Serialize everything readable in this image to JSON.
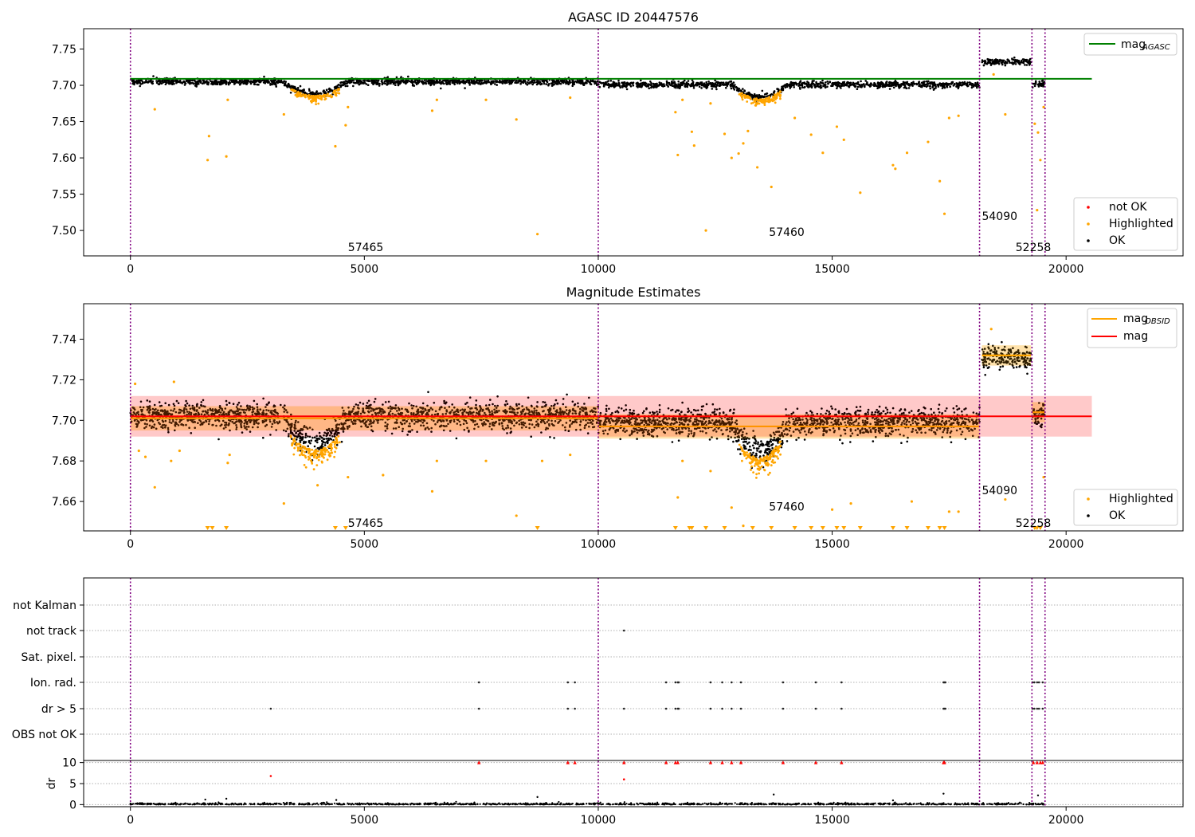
{
  "chart_data": [
    {
      "type": "scatter",
      "title": "AGASC ID 20447576",
      "xlim": [
        -1000,
        22500
      ],
      "ylim": [
        7.465,
        7.778
      ],
      "xticks": [
        0,
        5000,
        10000,
        15000,
        20000
      ],
      "yticks": [
        7.5,
        7.55,
        7.6,
        7.65,
        7.7,
        7.75
      ],
      "obs_boundaries": [
        0,
        10000,
        18150,
        19270,
        19550
      ],
      "obsid_labels": [
        {
          "text": "57465",
          "x": 4650,
          "y": 7.477
        },
        {
          "text": "57460",
          "x": 13650,
          "y": 7.498
        },
        {
          "text": "54090",
          "x": 18200,
          "y": 7.52
        },
        {
          "text": "52258",
          "x": 18920,
          "y": 7.477
        }
      ],
      "reference_line": {
        "name": "mag_AGASC",
        "legend_label": "mag",
        "legend_sub": "AGASC",
        "y": 7.709,
        "x": [
          0,
          20550
        ],
        "color": "#008000"
      },
      "series": [
        {
          "name": "OK",
          "color": "#000000",
          "segments": [
            {
              "x0": 0,
              "x1": 10000,
              "base": 7.705,
              "spread": 0.004,
              "dip_center": 3950,
              "dip_width": 700,
              "dip_depth": 0.017
            },
            {
              "x0": 10000,
              "x1": 18150,
              "base": 7.701,
              "spread": 0.004,
              "dip_center": 13450,
              "dip_width": 600,
              "dip_depth": 0.017
            },
            {
              "x0": 18200,
              "x1": 19250,
              "base": 7.732,
              "spread": 0.004
            },
            {
              "x0": 19270,
              "x1": 19550,
              "base": 7.703,
              "spread": 0.004
            }
          ]
        },
        {
          "name": "Highlighted",
          "color": "#ffa500",
          "points": [
            [
              520,
              7.667
            ],
            [
              1650,
              7.597
            ],
            [
              1680,
              7.63
            ],
            [
              2050,
              7.602
            ],
            [
              2080,
              7.68
            ],
            [
              3280,
              7.66
            ],
            [
              4380,
              7.616
            ],
            [
              4600,
              7.645
            ],
            [
              4650,
              7.67
            ],
            [
              6450,
              7.665
            ],
            [
              6550,
              7.68
            ],
            [
              7600,
              7.68
            ],
            [
              8250,
              7.653
            ],
            [
              8700,
              7.495
            ],
            [
              9400,
              7.683
            ],
            [
              11650,
              7.663
            ],
            [
              11700,
              7.604
            ],
            [
              11800,
              7.68
            ],
            [
              12000,
              7.636
            ],
            [
              12050,
              7.617
            ],
            [
              12300,
              7.5
            ],
            [
              12400,
              7.675
            ],
            [
              12700,
              7.633
            ],
            [
              12850,
              7.6
            ],
            [
              13000,
              7.606
            ],
            [
              13100,
              7.62
            ],
            [
              13200,
              7.637
            ],
            [
              13400,
              7.587
            ],
            [
              13700,
              7.56
            ],
            [
              14200,
              7.655
            ],
            [
              14550,
              7.632
            ],
            [
              14800,
              7.607
            ],
            [
              15100,
              7.643
            ],
            [
              15250,
              7.625
            ],
            [
              15600,
              7.552
            ],
            [
              16300,
              7.59
            ],
            [
              16350,
              7.585
            ],
            [
              16600,
              7.607
            ],
            [
              17050,
              7.622
            ],
            [
              17300,
              7.568
            ],
            [
              17400,
              7.523
            ],
            [
              17500,
              7.655
            ],
            [
              17700,
              7.658
            ],
            [
              18450,
              7.715
            ],
            [
              18700,
              7.66
            ],
            [
              19330,
              7.647
            ],
            [
              19380,
              7.528
            ],
            [
              19400,
              7.635
            ],
            [
              19450,
              7.597
            ],
            [
              19520,
              7.67
            ]
          ]
        },
        {
          "name": "not OK",
          "color": "#ff0000",
          "points": []
        }
      ],
      "legend": {
        "position": "lower-right",
        "entries": [
          "not OK",
          "Highlighted",
          "OK"
        ]
      }
    },
    {
      "type": "scatter",
      "title": "Magnitude Estimates",
      "xlim": [
        -1000,
        22500
      ],
      "ylim": [
        7.6455,
        7.7575
      ],
      "xticks": [
        0,
        5000,
        10000,
        15000,
        20000
      ],
      "yticks": [
        7.66,
        7.68,
        7.7,
        7.72,
        7.74
      ],
      "obs_boundaries": [
        0,
        10000,
        18150,
        19270,
        19550
      ],
      "obsid_labels": [
        {
          "text": "57465",
          "x": 4650,
          "y": 7.6495
        },
        {
          "text": "57460",
          "x": 13650,
          "y": 7.6575
        },
        {
          "text": "54090",
          "x": 18200,
          "y": 7.6655
        },
        {
          "text": "52258",
          "x": 18920,
          "y": 7.6495
        }
      ],
      "mag": {
        "name": "mag",
        "y": 7.702,
        "band": [
          7.692,
          7.712
        ],
        "x": [
          0,
          20550
        ],
        "color": "#ff0000"
      },
      "mag_obsid": {
        "name": "mag_OBSID",
        "legend_label": "mag",
        "legend_sub": "OBSID",
        "color": "#ffa500",
        "segments": [
          {
            "x0": 0,
            "x1": 10000,
            "y": 7.701,
            "band": [
              7.695,
              7.707
            ]
          },
          {
            "x0": 10000,
            "x1": 18150,
            "y": 7.697,
            "band": [
              7.691,
              7.703
            ]
          },
          {
            "x0": 18200,
            "x1": 19250,
            "y": 7.732,
            "band": [
              7.727,
              7.737
            ]
          },
          {
            "x0": 19270,
            "x1": 19550,
            "y": 7.704,
            "band": [
              7.699,
              7.709
            ]
          }
        ]
      },
      "series": [
        {
          "name": "OK",
          "color": "#000000",
          "segments": [
            {
              "x0": 0,
              "x1": 10000,
              "base": 7.702,
              "spread": 0.006,
              "dip_center": 3950,
              "dip_width": 700,
              "dip_depth": 0.013
            },
            {
              "x0": 10000,
              "x1": 18150,
              "base": 7.699,
              "spread": 0.006,
              "dip_center": 13450,
              "dip_width": 600,
              "dip_depth": 0.014
            },
            {
              "x0": 18200,
              "x1": 19250,
              "base": 7.731,
              "spread": 0.005
            },
            {
              "x0": 19270,
              "x1": 19550,
              "base": 7.703,
              "spread": 0.005
            }
          ]
        },
        {
          "name": "Highlighted",
          "color": "#ffa500",
          "points": [
            [
              100,
              7.718
            ],
            [
              180,
              7.685
            ],
            [
              320,
              7.682
            ],
            [
              520,
              7.667
            ],
            [
              870,
              7.68
            ],
            [
              930,
              7.719
            ],
            [
              1050,
              7.685
            ],
            [
              1650,
              7.647
            ],
            [
              1750,
              7.647
            ],
            [
              2050,
              7.647
            ],
            [
              2080,
              7.679
            ],
            [
              2120,
              7.683
            ],
            [
              3280,
              7.659
            ],
            [
              4000,
              7.668
            ],
            [
              4380,
              7.647
            ],
            [
              4600,
              7.647
            ],
            [
              4650,
              7.672
            ],
            [
              5400,
              7.673
            ],
            [
              6450,
              7.665
            ],
            [
              6550,
              7.68
            ],
            [
              7600,
              7.68
            ],
            [
              8250,
              7.653
            ],
            [
              8700,
              7.647
            ],
            [
              8800,
              7.68
            ],
            [
              9400,
              7.683
            ],
            [
              11650,
              7.647
            ],
            [
              11700,
              7.662
            ],
            [
              11800,
              7.68
            ],
            [
              11950,
              7.647
            ],
            [
              12000,
              7.647
            ],
            [
              12300,
              7.647
            ],
            [
              12400,
              7.675
            ],
            [
              12700,
              7.647
            ],
            [
              12850,
              7.657
            ],
            [
              13100,
              7.648
            ],
            [
              13300,
              7.647
            ],
            [
              13700,
              7.647
            ],
            [
              14200,
              7.647
            ],
            [
              14550,
              7.647
            ],
            [
              14800,
              7.647
            ],
            [
              15000,
              7.656
            ],
            [
              15100,
              7.647
            ],
            [
              15250,
              7.647
            ],
            [
              15400,
              7.659
            ],
            [
              15600,
              7.647
            ],
            [
              16300,
              7.647
            ],
            [
              16600,
              7.647
            ],
            [
              16700,
              7.66
            ],
            [
              17050,
              7.647
            ],
            [
              17300,
              7.647
            ],
            [
              17400,
              7.647
            ],
            [
              17500,
              7.655
            ],
            [
              17700,
              7.655
            ],
            [
              18400,
              7.745
            ],
            [
              18700,
              7.661
            ],
            [
              19330,
              7.647
            ],
            [
              19380,
              7.647
            ],
            [
              19450,
              7.647
            ],
            [
              19520,
              7.672
            ]
          ]
        }
      ],
      "legend": {
        "position": "lower-right",
        "entries": [
          "Highlighted",
          "OK"
        ]
      },
      "legend_top": {
        "position": "upper-right",
        "entries": [
          "mag_OBSID",
          "mag"
        ]
      }
    },
    {
      "type": "scatter",
      "title": "",
      "xlim": [
        -1000,
        22500
      ],
      "xticks": [
        0,
        5000,
        10000,
        15000,
        20000
      ],
      "obs_boundaries": [
        0,
        10000,
        18150,
        19270,
        19550
      ],
      "flag_rows": [
        "not Kalman",
        "not track",
        "Sat. pixel.",
        "Ion. rad.",
        "dr > 5",
        "OBS not OK"
      ],
      "flag_points": {
        "not track": [
          10550
        ],
        "Ion. rad.": [
          7450,
          9350,
          9500,
          11450,
          11650,
          11700,
          11720,
          12400,
          12650,
          12850,
          13050,
          13950,
          14650,
          15200,
          17380,
          17400,
          17420,
          19280,
          19320,
          19380,
          19420,
          19500
        ],
        "dr > 5": [
          3000,
          7450,
          9350,
          9500,
          10550,
          11450,
          11650,
          11700,
          11720,
          12400,
          12650,
          12850,
          13050,
          13950,
          14650,
          15200,
          17380,
          17400,
          17420,
          19280,
          19320,
          19380,
          19420,
          19500
        ]
      },
      "dr": {
        "ylabel": "dr",
        "ylim": [
          -0.5,
          10.5
        ],
        "yticks": [
          0,
          5,
          10
        ],
        "clip": 10,
        "red_points": [
          [
            3000,
            6.8
          ],
          [
            7450,
            10
          ],
          [
            9350,
            10
          ],
          [
            9500,
            10
          ],
          [
            10550,
            10
          ],
          [
            10550,
            6
          ],
          [
            11450,
            10
          ],
          [
            11650,
            10
          ],
          [
            11700,
            10
          ],
          [
            12400,
            10
          ],
          [
            12650,
            10
          ],
          [
            12850,
            10
          ],
          [
            13050,
            10
          ],
          [
            13950,
            10
          ],
          [
            14650,
            10
          ],
          [
            15200,
            10
          ],
          [
            17380,
            10
          ],
          [
            17400,
            10
          ],
          [
            19300,
            10
          ],
          [
            19380,
            10
          ],
          [
            19450,
            10
          ],
          [
            19500,
            10
          ]
        ],
        "black_outliers": [
          [
            1600,
            1.2
          ],
          [
            2050,
            1.4
          ],
          [
            4400,
            1.1
          ],
          [
            8700,
            1.8
          ],
          [
            13750,
            2.4
          ],
          [
            16300,
            1.0
          ],
          [
            17380,
            2.6
          ],
          [
            19400,
            2.2
          ]
        ]
      }
    }
  ]
}
